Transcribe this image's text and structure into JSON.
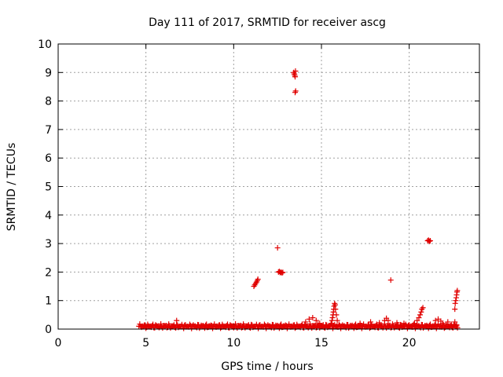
{
  "chart_data": {
    "type": "scatter",
    "title": "Day 111 of 2017, SRMTID for receiver ascg",
    "xlabel": "GPS time / hours",
    "ylabel": "SRMTID / TECUs",
    "xlim": [
      0,
      24
    ],
    "ylim": [
      0,
      10
    ],
    "x_ticks": [
      0,
      5,
      10,
      15,
      20
    ],
    "y_ticks": [
      0,
      1,
      2,
      3,
      4,
      5,
      6,
      7,
      8,
      9,
      10
    ],
    "grid": true,
    "marker": "plus",
    "color": "#e00000",
    "baseline": {
      "x_start": 4.6,
      "x_end": 22.8,
      "step": 0.05,
      "value_range": [
        0.02,
        0.18
      ]
    },
    "points": [
      [
        6.75,
        0.3
      ],
      [
        11.15,
        1.5
      ],
      [
        11.2,
        1.55
      ],
      [
        11.25,
        1.6
      ],
      [
        11.3,
        1.65
      ],
      [
        11.35,
        1.7
      ],
      [
        11.38,
        1.75
      ],
      [
        12.5,
        2.85
      ],
      [
        12.55,
        2.0
      ],
      [
        12.6,
        2.02
      ],
      [
        12.65,
        1.98
      ],
      [
        12.7,
        2.0
      ],
      [
        12.75,
        1.97
      ],
      [
        12.8,
        1.99
      ],
      [
        13.42,
        9.0
      ],
      [
        13.45,
        8.95
      ],
      [
        13.48,
        8.9
      ],
      [
        13.5,
        8.85
      ],
      [
        13.52,
        9.05
      ],
      [
        13.5,
        8.3
      ],
      [
        13.53,
        8.35
      ],
      [
        14.1,
        0.25
      ],
      [
        14.3,
        0.35
      ],
      [
        14.5,
        0.4
      ],
      [
        14.7,
        0.3
      ],
      [
        14.9,
        0.2
      ],
      [
        15.55,
        0.2
      ],
      [
        15.6,
        0.3
      ],
      [
        15.63,
        0.4
      ],
      [
        15.66,
        0.5
      ],
      [
        15.68,
        0.6
      ],
      [
        15.7,
        0.7
      ],
      [
        15.72,
        0.8
      ],
      [
        15.75,
        0.9
      ],
      [
        15.78,
        0.85
      ],
      [
        15.8,
        0.7
      ],
      [
        15.85,
        0.5
      ],
      [
        15.9,
        0.3
      ],
      [
        16.5,
        0.15
      ],
      [
        17.2,
        0.2
      ],
      [
        17.8,
        0.25
      ],
      [
        18.3,
        0.22
      ],
      [
        18.6,
        0.3
      ],
      [
        18.7,
        0.38
      ],
      [
        18.8,
        0.3
      ],
      [
        18.95,
        1.72
      ],
      [
        19.3,
        0.22
      ],
      [
        19.7,
        0.2
      ],
      [
        20.3,
        0.2
      ],
      [
        20.45,
        0.3
      ],
      [
        20.55,
        0.4
      ],
      [
        20.62,
        0.5
      ],
      [
        20.68,
        0.6
      ],
      [
        20.72,
        0.7
      ],
      [
        20.78,
        0.75
      ],
      [
        21.05,
        3.1
      ],
      [
        21.1,
        3.12
      ],
      [
        21.15,
        3.08
      ],
      [
        21.2,
        3.1
      ],
      [
        21.5,
        0.3
      ],
      [
        21.65,
        0.35
      ],
      [
        21.8,
        0.28
      ],
      [
        21.9,
        0.2
      ],
      [
        22.2,
        0.25
      ],
      [
        22.4,
        0.1
      ],
      [
        22.6,
        0.7
      ],
      [
        22.62,
        0.9
      ],
      [
        22.65,
        1.0
      ],
      [
        22.68,
        1.1
      ],
      [
        22.7,
        1.2
      ],
      [
        22.72,
        1.3
      ],
      [
        22.74,
        1.35
      ],
      [
        22.6,
        0.25
      ],
      [
        22.7,
        0.15
      ]
    ]
  }
}
